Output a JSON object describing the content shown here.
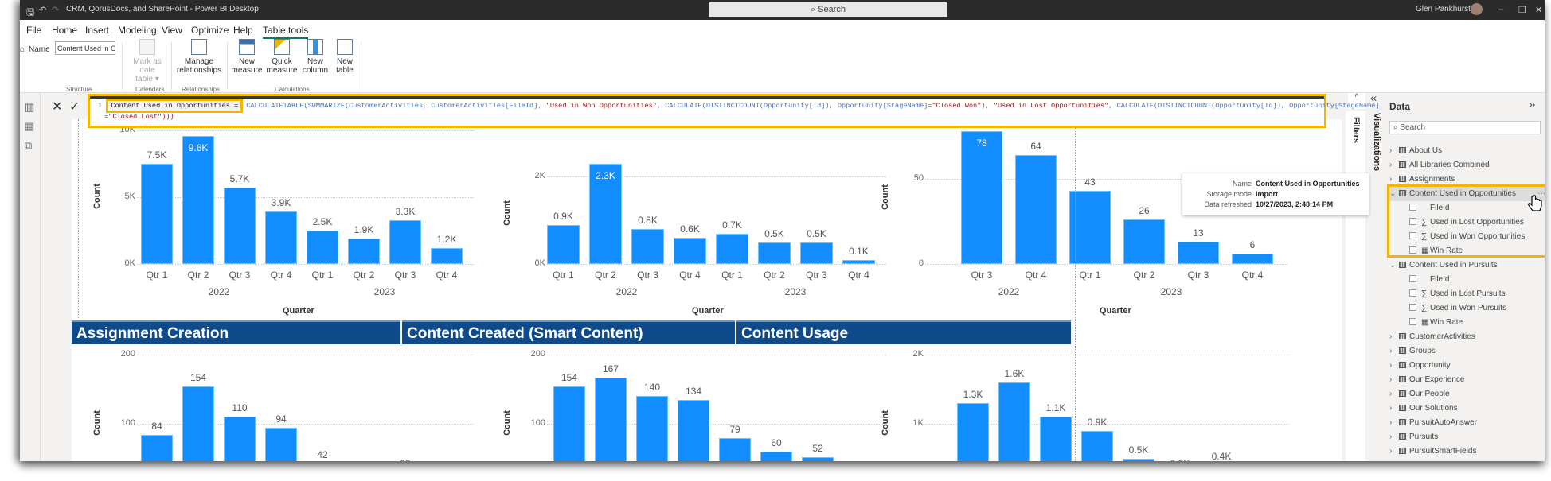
{
  "titlebar": {
    "title": "CRM, QorusDocs, and SharePoint - Power BI Desktop",
    "search": "Search",
    "user": "Glen Pankhurst",
    "icons": [
      "save-icon",
      "undo-icon",
      "redo-icon",
      "minimize-icon",
      "restore-icon",
      "close-icon"
    ]
  },
  "menu": [
    "File",
    "Home",
    "Insert",
    "Modeling",
    "View",
    "Optimize",
    "Help",
    "Table tools"
  ],
  "menu_active": "Table tools",
  "ribbon": {
    "name_label": "Name",
    "name_value": "Content Used in O...",
    "mark_as_date": "Mark as date",
    "mark_table": "table ▾",
    "manage": "Manage",
    "relationships": "relationships",
    "new_measure_1": "New",
    "new_measure_2": "measure",
    "quick_measure_1": "Quick",
    "quick_measure_2": "measure",
    "new_column_1": "New",
    "new_column_2": "column",
    "new_table_1": "New",
    "new_table_2": "table",
    "groups": [
      "Structure",
      "Calendars",
      "Relationships",
      "Calculations"
    ]
  },
  "formula": {
    "line_number": "1",
    "name": "Content Used in Opportunities =",
    "part1": "CALCULATETABLE(SUMMARIZE(CustomerActivities, CustomerActivities[FileId], ",
    "str1": "\"Used in Won Opportunities\"",
    "part2": ", CALCULATE(DISTINCTCOUNT(Opportunity[Id]), Opportunity[StageName]=",
    "str2": "\"Closed Won\"",
    "part3": "), ",
    "str3": "\"Used in Lost Opportunities\"",
    "part4": ", CALCULATE(DISTINCTCOUNT(Opportunity[Id]), Opportunity[StageName]",
    "line2": "=\"Closed Lost\")))"
  },
  "section_headers": [
    "Assignment Creation",
    "Content Created (Smart Content)",
    "Content Usage"
  ],
  "panes": {
    "filters": "Filters",
    "visualizations": "Visualizations",
    "data_title": "Data",
    "search_placeholder": "Search"
  },
  "tooltip": {
    "name_label": "Name",
    "name": "Content Used in Opportunities",
    "storage_label": "Storage mode",
    "storage": "Import",
    "refreshed_label": "Data refreshed",
    "refreshed": "10/27/2023, 2:48:14 PM"
  },
  "data_tree": [
    {
      "type": "table",
      "label": "About Us",
      "expanded": false
    },
    {
      "type": "table",
      "label": "All Libraries Combined",
      "expanded": false
    },
    {
      "type": "table",
      "label": "Assignments",
      "expanded": false
    },
    {
      "type": "calc-table",
      "label": "Content Used in Opportunities",
      "expanded": true,
      "selected": true
    },
    {
      "type": "field",
      "label": "FileId"
    },
    {
      "type": "sum",
      "label": "Used in Lost Opportunities"
    },
    {
      "type": "sum",
      "label": "Used in Won Opportunities"
    },
    {
      "type": "measure",
      "label": "Win Rate"
    },
    {
      "type": "calc-table",
      "label": "Content Used in Pursuits",
      "expanded": true
    },
    {
      "type": "field",
      "label": "FileId"
    },
    {
      "type": "sum",
      "label": "Used in Lost Pursuits"
    },
    {
      "type": "sum",
      "label": "Used in Won Pursuits"
    },
    {
      "type": "measure",
      "label": "Win Rate"
    },
    {
      "type": "table",
      "label": "CustomerActivities",
      "expanded": false
    },
    {
      "type": "table",
      "label": "Groups",
      "expanded": false
    },
    {
      "type": "table",
      "label": "Opportunity",
      "expanded": false
    },
    {
      "type": "table",
      "label": "Our Experience",
      "expanded": false
    },
    {
      "type": "table",
      "label": "Our People",
      "expanded": false
    },
    {
      "type": "table",
      "label": "Our Solutions",
      "expanded": false
    },
    {
      "type": "table",
      "label": "PursuitAutoAnswer",
      "expanded": false
    },
    {
      "type": "table",
      "label": "Pursuits",
      "expanded": false
    },
    {
      "type": "table",
      "label": "PursuitSmartFields",
      "expanded": false
    }
  ],
  "colors": {
    "bar": "#118dff",
    "header": "#0f4a8a",
    "highlight": "#f2b500"
  },
  "chart_data": [
    {
      "type": "bar",
      "title": "",
      "ylabel": "Count",
      "xlabel": "Quarter",
      "ylim": [
        0,
        10000
      ],
      "yticks": [
        "0K",
        "5K",
        "10K"
      ],
      "ytick_values": [
        0,
        5000,
        10000
      ],
      "categories": [
        "Qtr 1",
        "Qtr 2",
        "Qtr 3",
        "Qtr 4",
        "Qtr 1",
        "Qtr 2",
        "Qtr 3",
        "Qtr 4"
      ],
      "groups": [
        {
          "label": "2022",
          "count": 4
        },
        {
          "label": "2023",
          "count": 4
        }
      ],
      "values": [
        7500,
        9600,
        5700,
        3900,
        2500,
        1900,
        3300,
        1200
      ],
      "labels": [
        "7.5K",
        "9.6K",
        "5.7K",
        "3.9K",
        "2.5K",
        "1.9K",
        "3.3K",
        "1.2K"
      ]
    },
    {
      "type": "bar",
      "title": "",
      "ylabel": "Count",
      "xlabel": "Quarter",
      "ylim": [
        0,
        2300
      ],
      "yticks": [
        "0K",
        "2K"
      ],
      "ytick_values": [
        0,
        2000
      ],
      "categories": [
        "Qtr 1",
        "Qtr 2",
        "Qtr 3",
        "Qtr 4",
        "Qtr 1",
        "Qtr 2",
        "Qtr 3",
        "Qtr 4"
      ],
      "groups": [
        {
          "label": "2022",
          "count": 4
        },
        {
          "label": "2023",
          "count": 4
        }
      ],
      "values": [
        900,
        2300,
        800,
        600,
        700,
        500,
        500,
        100
      ],
      "labels": [
        "0.9K",
        "2.3K",
        "0.8K",
        "0.6K",
        "0.7K",
        "0.5K",
        "0.5K",
        "0.1K"
      ]
    },
    {
      "type": "bar",
      "title": "",
      "ylabel": "Count",
      "xlabel": "Quarter",
      "ylim": [
        0,
        78
      ],
      "yticks": [
        "0",
        "50"
      ],
      "ytick_values": [
        0,
        50
      ],
      "categories": [
        "Qtr 3",
        "Qtr 4",
        "Qtr 1",
        "Qtr 2",
        "Qtr 3",
        "Qtr 4"
      ],
      "groups": [
        {
          "label": "2022",
          "count": 2
        },
        {
          "label": "2023",
          "count": 4
        }
      ],
      "values": [
        78,
        64,
        43,
        26,
        13,
        6
      ],
      "labels": [
        "78",
        "64",
        "43",
        "26",
        "13",
        "6"
      ]
    },
    {
      "type": "bar",
      "title": "Assignment Creation",
      "ylabel": "Count",
      "ylim": [
        0,
        200
      ],
      "yticks": [
        "100",
        "200"
      ],
      "ytick_values": [
        100,
        200
      ],
      "values": [
        84,
        154,
        110,
        94,
        42,
        null,
        30
      ],
      "labels": [
        "84",
        "154",
        "110",
        "94",
        "42",
        "",
        "30"
      ]
    },
    {
      "type": "bar",
      "title": "Content Created (Smart Content)",
      "ylabel": "Count",
      "ylim": [
        0,
        200
      ],
      "yticks": [
        "100",
        "200"
      ],
      "ytick_values": [
        100,
        200
      ],
      "values": [
        154,
        167,
        140,
        134,
        79,
        60,
        52
      ],
      "labels": [
        "154",
        "167",
        "140",
        "134",
        "79",
        "60",
        "52"
      ]
    },
    {
      "type": "bar",
      "title": "Content Usage",
      "ylabel": "Count",
      "ylim": [
        0,
        2000
      ],
      "yticks": [
        "1K",
        "2K"
      ],
      "ytick_values": [
        1000,
        2000
      ],
      "values": [
        1300,
        1600,
        1100,
        900,
        500,
        300,
        400
      ],
      "labels": [
        "1.3K",
        "1.6K",
        "1.1K",
        "0.9K",
        "0.5K",
        "0.3K",
        "0.4K"
      ]
    }
  ]
}
